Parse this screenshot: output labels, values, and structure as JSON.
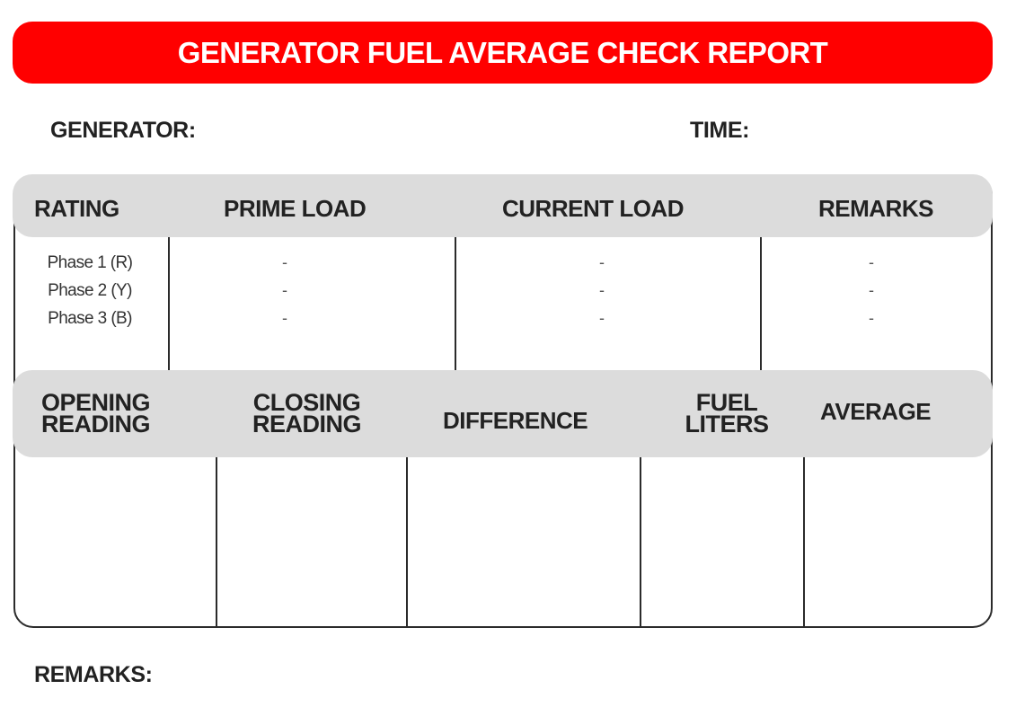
{
  "title": "GENERATOR FUEL AVERAGE CHECK REPORT",
  "fields": {
    "generator": "GENERATOR:",
    "time": "TIME:",
    "remarks": "REMARKS:"
  },
  "table1": {
    "headers": [
      "RATING",
      "PRIME LOAD",
      "CURRENT LOAD",
      "REMARKS"
    ],
    "phases": [
      "Phase 1 (R)",
      "Phase 2 (Y)",
      "Phase 3 (B)"
    ],
    "placeholder": "-"
  },
  "table2": {
    "headers": [
      {
        "line1": "OPENING",
        "line2": "READING"
      },
      {
        "line1": "CLOSING",
        "line2": "READING"
      },
      {
        "line1": "DIFFERENCE",
        "line2": ""
      },
      {
        "line1": "FUEL",
        "line2": "LITERS"
      },
      {
        "line1": "AVERAGE",
        "line2": ""
      }
    ]
  },
  "colors": {
    "banner": "#ff0000",
    "header_band": "#dcdcdc",
    "border": "#2b2b2b"
  }
}
